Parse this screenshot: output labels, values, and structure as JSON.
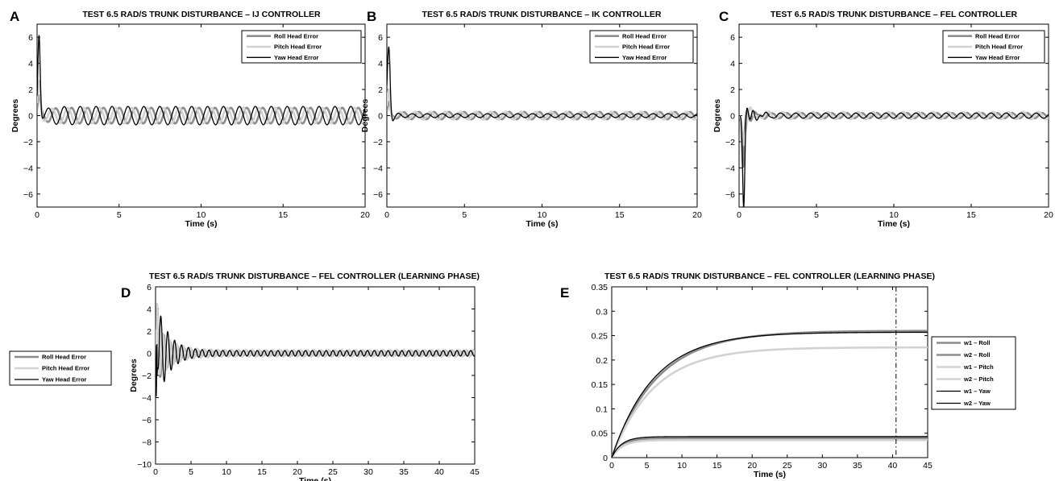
{
  "chart_data": [
    {
      "id": "A",
      "letter": "A",
      "type": "line",
      "title": "TEST 6.5 RAD/S  TRUNK DISTURBANCE – IJ CONTROLLER",
      "xlabel": "Time (s)",
      "ylabel": "Degrees",
      "xlim": [
        0,
        20
      ],
      "ylim": [
        -7,
        7
      ],
      "xticks": [
        0,
        5,
        10,
        15,
        20
      ],
      "yticks": [
        -6,
        -4,
        -2,
        0,
        2,
        4,
        6
      ],
      "legend_position": "top-right",
      "series": [
        {
          "name": "Roll Head Error",
          "color": "#8c8c8c",
          "width": 2.6,
          "profile": {
            "peak": 1.4,
            "sigma": 0.12,
            "spike": 0,
            "spikeT": 0.3,
            "decayAmp": 0,
            "decayTau": 0.5,
            "decayFreq": 3,
            "decayPhase": 0,
            "ampSS": 0.6,
            "freq": 1.03,
            "phase": 0.5
          }
        },
        {
          "name": "Pitch Head Error",
          "color": "#d2d2d2",
          "width": 2.6,
          "profile": {
            "peak": 2.6,
            "sigma": 0.12,
            "spike": 0,
            "spikeT": 0.3,
            "decayAmp": 0,
            "decayTau": 0.5,
            "decayFreq": 3,
            "decayPhase": 0,
            "ampSS": 0.6,
            "freq": 1.03,
            "phase": 2.0
          }
        },
        {
          "name": "Yaw Head Error",
          "color": "#000000",
          "width": 1.3,
          "profile": {
            "peak": 6.3,
            "sigma": 0.1,
            "spike": 0,
            "spikeT": 0.3,
            "decayAmp": 0,
            "decayTau": 0.5,
            "decayFreq": 3,
            "decayPhase": 0,
            "ampSS": 0.7,
            "freq": 1.03,
            "phase": 3.4
          }
        }
      ]
    },
    {
      "id": "B",
      "letter": "B",
      "type": "line",
      "title": "TEST 6.5 RAD/S  TRUNK DISTURBANCE – IK CONTROLLER",
      "xlabel": "Time (s)",
      "ylabel": "Degrees",
      "xlim": [
        0,
        20
      ],
      "ylim": [
        -7,
        7
      ],
      "xticks": [
        0,
        5,
        10,
        15,
        20
      ],
      "yticks": [
        -6,
        -4,
        -2,
        0,
        2,
        4,
        6
      ],
      "legend_position": "top-right",
      "series": [
        {
          "name": "Roll Head Error",
          "color": "#8c8c8c",
          "width": 2.6,
          "profile": {
            "peak": 1.0,
            "sigma": 0.12,
            "spike": 0,
            "spikeT": 0.3,
            "decayAmp": 0,
            "decayTau": 0.5,
            "decayFreq": 3,
            "decayPhase": 0,
            "ampSS": 0.28,
            "freq": 1.03,
            "phase": 0.8
          }
        },
        {
          "name": "Pitch Head Error",
          "color": "#d2d2d2",
          "width": 2.6,
          "profile": {
            "peak": 2.0,
            "sigma": 0.12,
            "spike": 0,
            "spikeT": 0.3,
            "decayAmp": 0,
            "decayTau": 0.5,
            "decayFreq": 3,
            "decayPhase": 0,
            "ampSS": 0.3,
            "freq": 1.03,
            "phase": 2.2
          }
        },
        {
          "name": "Yaw Head Error",
          "color": "#000000",
          "width": 1.3,
          "profile": {
            "peak": 5.3,
            "sigma": 0.13,
            "spike": 0,
            "spikeT": 0.3,
            "decayAmp": -1.8,
            "decayTau": 0.28,
            "decayFreq": 1.0,
            "decayPhase": -0.9,
            "ampSS": 0.15,
            "freq": 1.03,
            "phase": 3.6
          }
        }
      ]
    },
    {
      "id": "C",
      "letter": "C",
      "type": "line",
      "title": "TEST 6.5 RAD/S  TRUNK DISTURBANCE – FEL CONTROLLER",
      "xlabel": "Time (s)",
      "ylabel": "Degrees",
      "xlim": [
        0,
        20
      ],
      "ylim": [
        -7,
        7
      ],
      "xticks": [
        0,
        5,
        10,
        15,
        20
      ],
      "yticks": [
        -6,
        -4,
        -2,
        0,
        2,
        4,
        6
      ],
      "legend_position": "top-right",
      "series": [
        {
          "name": "Roll Head Error",
          "color": "#8c8c8c",
          "width": 2.6,
          "profile": {
            "peak": 0,
            "sigma": 0.12,
            "spike": -3.5,
            "spikeT": 0.25,
            "decayAmp": 1.2,
            "decayTau": 0.5,
            "decayFreq": 2.2,
            "decayPhase": 0.4,
            "ampSS": 0.2,
            "freq": 1.03,
            "phase": 0.5
          }
        },
        {
          "name": "Pitch Head Error",
          "color": "#d2d2d2",
          "width": 2.6,
          "profile": {
            "peak": 0,
            "sigma": 0.12,
            "spike": -2.0,
            "spikeT": 0.25,
            "decayAmp": 2.0,
            "decayTau": 0.55,
            "decayFreq": 1.6,
            "decayPhase": 0.6,
            "ampSS": 0.28,
            "freq": 1.03,
            "phase": 2.0
          }
        },
        {
          "name": "Yaw Head Error",
          "color": "#000000",
          "width": 1.3,
          "profile": {
            "peak": 0,
            "sigma": 0.12,
            "spike": -6.0,
            "spikeT": 0.3,
            "decayAmp": 1.6,
            "decayTau": 0.55,
            "decayFreq": 2.4,
            "decayPhase": 0.2,
            "ampSS": 0.2,
            "freq": 1.03,
            "phase": 3.0
          }
        }
      ]
    },
    {
      "id": "D",
      "letter": "D",
      "type": "line",
      "title": "TEST 6.5 RAD/S  TRUNK DISTURBANCE – FEL CONTROLLER (LEARNING PHASE)",
      "xlabel": "Time (s)",
      "ylabel": "Degrees",
      "xlim": [
        0,
        45
      ],
      "ylim": [
        -10,
        6
      ],
      "xticks": [
        0,
        5,
        10,
        15,
        20,
        25,
        30,
        35,
        40,
        45
      ],
      "yticks": [
        -10,
        -8,
        -6,
        -4,
        -2,
        0,
        2,
        4,
        6
      ],
      "legend_position": "outside-left",
      "series": [
        {
          "name": "Roll Head Error",
          "color": "#8c8c8c",
          "width": 2.6,
          "profile": {
            "peak": 3.0,
            "sigma": 0.25,
            "spike": -4.5,
            "spikeT": 0.1,
            "decayAmp": 3.0,
            "decayTau": 1.6,
            "decayFreq": 1.03,
            "decayPhase": 0.4,
            "ampSS": 0.22,
            "freq": 1.03,
            "phase": 0.4
          }
        },
        {
          "name": "Pitch Head Error",
          "color": "#d2d2d2",
          "width": 2.6,
          "profile": {
            "peak": 5.5,
            "sigma": 0.25,
            "spike": -6.0,
            "spikeT": 0.1,
            "decayAmp": 2.5,
            "decayTau": 2.0,
            "decayFreq": 1.03,
            "decayPhase": 1.2,
            "ampSS": 0.3,
            "freq": 1.03,
            "phase": 1.2
          }
        },
        {
          "name": "Yaw Head Error",
          "color": "#000000",
          "width": 1.3,
          "profile": {
            "peak": 5.0,
            "sigma": 0.25,
            "spike": -8.8,
            "spikeT": 0.1,
            "decayAmp": 5.0,
            "decayTau": 1.6,
            "decayFreq": 1.03,
            "decayPhase": 3.0,
            "ampSS": 0.25,
            "freq": 1.03,
            "phase": 3.0
          }
        }
      ]
    },
    {
      "id": "E",
      "letter": "E",
      "type": "line",
      "title": "TEST 6.5 RAD/S  TRUNK DISTURBANCE – FEL CONTROLLER (LEARNING PHASE)",
      "xlabel": "Time (s)",
      "ylabel": "",
      "xlim": [
        0,
        45
      ],
      "ylim": [
        0,
        0.35
      ],
      "xticks": [
        0,
        5,
        10,
        15,
        20,
        25,
        30,
        35,
        40,
        45
      ],
      "yticks": [
        0,
        0.05,
        0.1,
        0.15,
        0.2,
        0.25,
        0.3,
        0.35
      ],
      "vline_x": 40.5,
      "legend_position": "outside-right",
      "series": [
        {
          "name": "w1 – Roll",
          "color": "#8c8c8c",
          "width": 2.6,
          "profile": {
            "final": 0.26,
            "tau": 6.5
          }
        },
        {
          "name": "w2 – Roll",
          "color": "#8c8c8c",
          "width": 2.6,
          "profile": {
            "final": 0.04,
            "tau": 1.5
          }
        },
        {
          "name": "w1 – Pitch",
          "color": "#d2d2d2",
          "width": 2.6,
          "profile": {
            "final": 0.226,
            "tau": 6.0
          }
        },
        {
          "name": "w2 – Pitch",
          "color": "#d2d2d2",
          "width": 2.6,
          "profile": {
            "final": 0.036,
            "tau": 1.5
          }
        },
        {
          "name": "w1 – Yaw",
          "color": "#000000",
          "width": 1.3,
          "profile": {
            "final": 0.257,
            "tau": 6.0
          }
        },
        {
          "name": "w2 – Yaw",
          "color": "#000000",
          "width": 1.3,
          "profile": {
            "final": 0.043,
            "tau": 1.4
          }
        }
      ]
    }
  ]
}
